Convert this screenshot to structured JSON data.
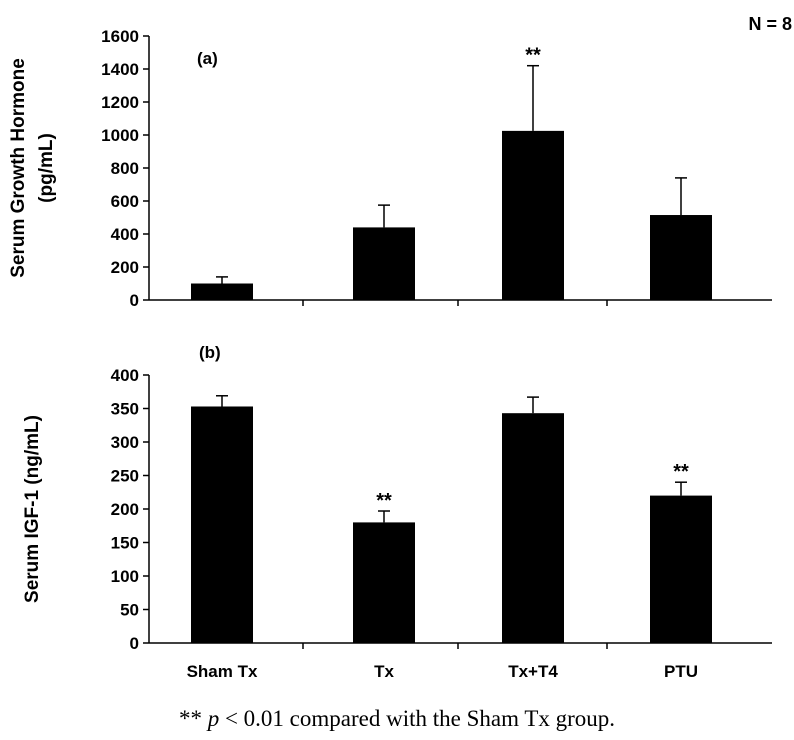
{
  "n_label": "N = 8",
  "footnote": {
    "prefix": "** ",
    "p": "p",
    "suffix": " < 0.01 compared with the Sham Tx group."
  },
  "chart_data": [
    {
      "type": "bar",
      "panel_label": "(a)",
      "categories": [
        "Sham Tx",
        "Tx",
        "Tx+T4",
        "PTU"
      ],
      "values": [
        100,
        440,
        1025,
        515
      ],
      "errors": [
        40,
        135,
        395,
        225
      ],
      "significance": [
        "",
        "",
        "**",
        ""
      ],
      "ylabel": [
        "Serum Growth Hormone",
        "(pg/mL)"
      ],
      "ylim": [
        0,
        1600
      ],
      "yticks": [
        0,
        200,
        400,
        600,
        800,
        1000,
        1200,
        1400,
        1600
      ],
      "bar_color": "#000000"
    },
    {
      "type": "bar",
      "panel_label": "(b)",
      "categories": [
        "Sham Tx",
        "Tx",
        "Tx+T4",
        "PTU"
      ],
      "values": [
        353,
        180,
        343,
        220
      ],
      "errors": [
        16,
        17,
        24,
        20
      ],
      "significance": [
        "",
        "**",
        "",
        "**"
      ],
      "ylabel": [
        "Serum IGF-1 (ng/mL)"
      ],
      "ylim": [
        0,
        400
      ],
      "yticks": [
        0,
        50,
        100,
        150,
        200,
        250,
        300,
        350,
        400
      ],
      "bar_color": "#000000"
    }
  ]
}
